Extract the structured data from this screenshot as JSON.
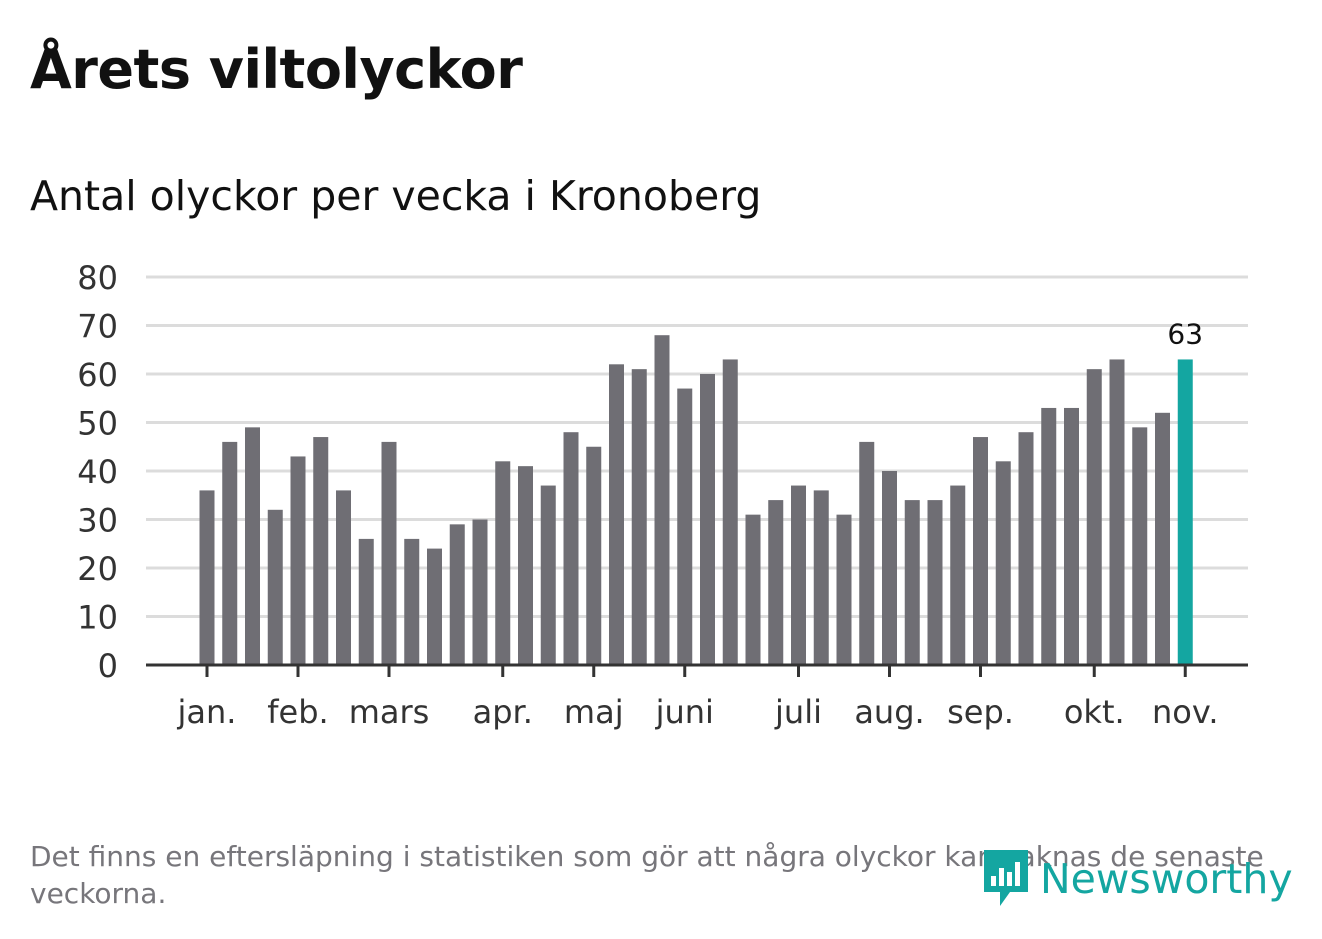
{
  "title": "Årets viltolyckor",
  "subtitle": "Antal olyckor per vecka i Kronoberg",
  "footnote": "Det finns en eftersläpning i statistiken som gör att några olyckor kan saknas de senaste veckorna.",
  "logo": {
    "name": "Newsworthy",
    "color": "#14a6a1"
  },
  "colors": {
    "bar": "#6f6e74",
    "highlight": "#14a6a1",
    "grid": "#dcdcdc",
    "axis": "#333333"
  },
  "chart_data": {
    "type": "bar",
    "title": "Antal olyckor per vecka i Kronoberg",
    "xlabel": "",
    "ylabel": "",
    "ylim": [
      0,
      80
    ],
    "yticks": [
      0,
      10,
      20,
      30,
      40,
      50,
      60,
      70,
      80
    ],
    "grid": true,
    "values": [
      36,
      46,
      49,
      32,
      43,
      47,
      36,
      26,
      46,
      26,
      24,
      29,
      30,
      42,
      41,
      37,
      48,
      45,
      62,
      61,
      68,
      57,
      60,
      63,
      31,
      34,
      37,
      36,
      31,
      46,
      40,
      34,
      34,
      37,
      47,
      42,
      48,
      53,
      53,
      61,
      63,
      49,
      52,
      63
    ],
    "month_ticks": [
      {
        "label": "jan.",
        "position": 0.0
      },
      {
        "label": "feb.",
        "position": 4.0
      },
      {
        "label": "mars",
        "position": 8.0
      },
      {
        "label": "apr.",
        "position": 13.0
      },
      {
        "label": "maj",
        "position": 17.0
      },
      {
        "label": "juni",
        "position": 21.0
      },
      {
        "label": "juli",
        "position": 26.0
      },
      {
        "label": "aug.",
        "position": 30.0
      },
      {
        "label": "sep.",
        "position": 34.0
      },
      {
        "label": "okt.",
        "position": 39.0
      },
      {
        "label": "nov.",
        "position": 43.0
      }
    ],
    "highlight": {
      "index": 43,
      "value": 63,
      "label": "63"
    }
  }
}
